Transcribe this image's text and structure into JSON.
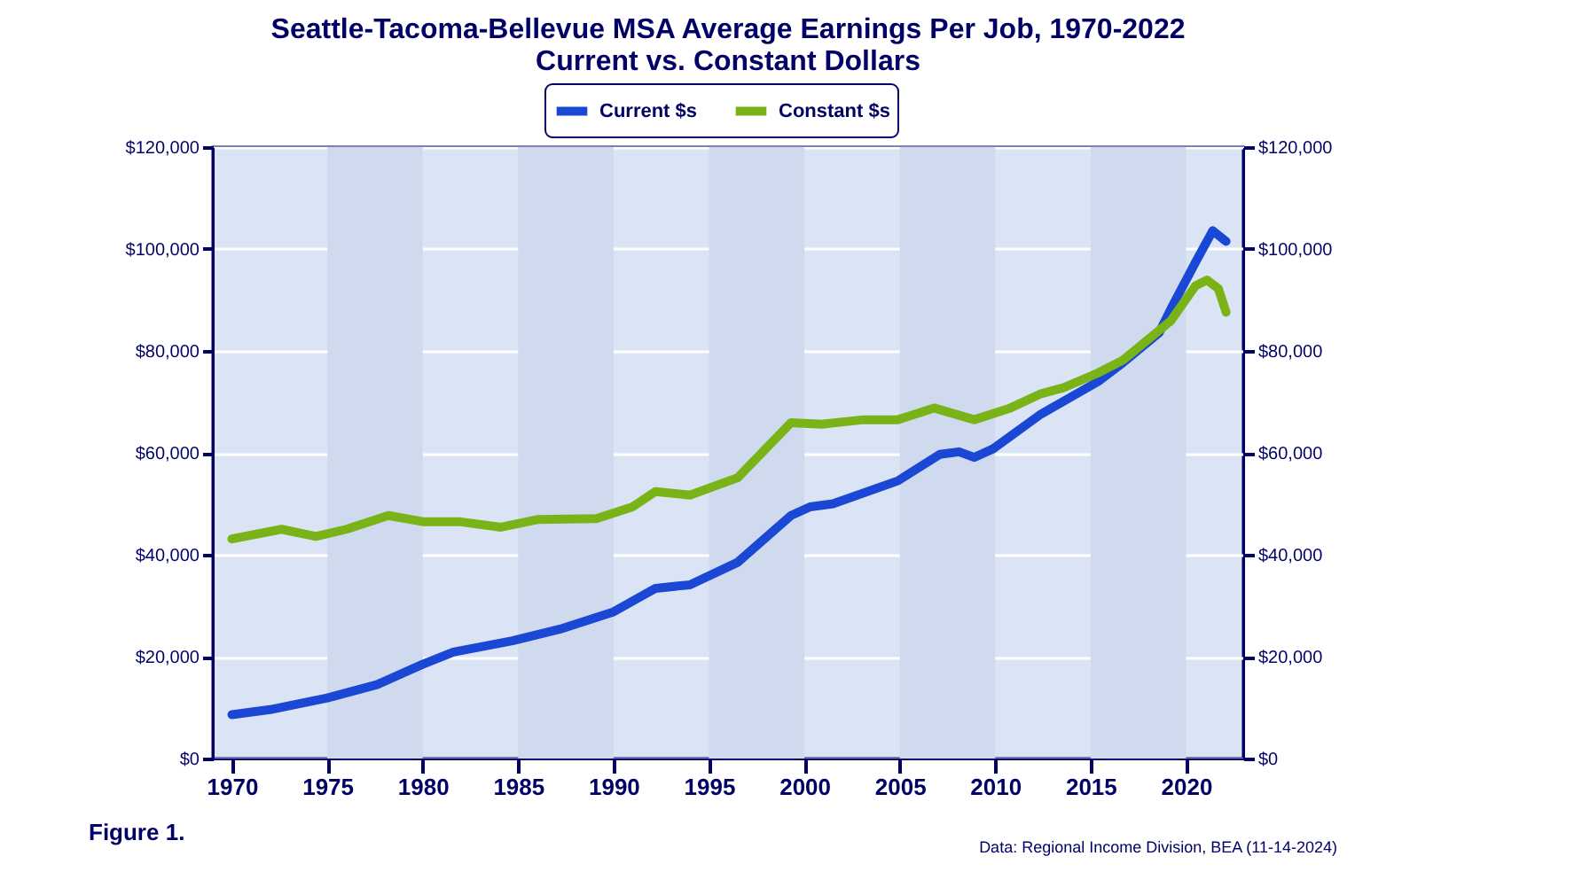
{
  "chart_data": {
    "type": "line",
    "title": "Seattle-Tacoma-Bellevue MSA Average Earnings Per Job, 1970-2022",
    "subtitle": "Current vs. Constant Dollars",
    "series": [
      {
        "name": "Current $s",
        "color": "#1a47d4",
        "x": [
          1970,
          1972,
          1975,
          1977.6,
          1980,
          1981.6,
          1984.7,
          1987.2,
          1990,
          1992.2,
          1994,
          1996.5,
          1999.3,
          2000.3,
          2001.5,
          2004.9,
          2007.1,
          2008.1,
          2008.9,
          2009.9,
          2012.4,
          2015.4,
          2016.7,
          2018.6,
          2019.2,
          2020.5,
          2021.4,
          2022.1
        ],
        "values": [
          8600,
          9600,
          11900,
          14500,
          18500,
          20900,
          23100,
          25400,
          28800,
          33400,
          34100,
          38500,
          47700,
          49400,
          50000,
          54500,
          59700,
          60200,
          59100,
          60800,
          67600,
          74000,
          77700,
          83600,
          88200,
          97400,
          103600,
          101500
        ]
      },
      {
        "name": "Constant $s",
        "color": "#7ab317",
        "x": [
          1970,
          1972.6,
          1974.4,
          1976,
          1978.2,
          1980,
          1981.9,
          1984.1,
          1986,
          1989.1,
          1991,
          1992.2,
          1994,
          1996.5,
          1999.3,
          2000.9,
          2003.1,
          2004.9,
          2006.8,
          2008.9,
          2010.8,
          2012.4,
          2013.6,
          2015.4,
          2016.7,
          2019.2,
          2020.5,
          2021.1,
          2021.7,
          2022.1
        ],
        "values": [
          43100,
          45000,
          43600,
          45000,
          47700,
          46500,
          46500,
          45400,
          46900,
          47100,
          49400,
          52400,
          51700,
          55100,
          65900,
          65600,
          66500,
          66500,
          68800,
          66500,
          68800,
          71600,
          72800,
          75700,
          78200,
          85900,
          92800,
          93900,
          92200,
          87600
        ]
      }
    ],
    "xlim": [
      1969,
      2023
    ],
    "xticks": [
      1970,
      1975,
      1980,
      1985,
      1990,
      1995,
      2000,
      2005,
      2010,
      2015,
      2020
    ],
    "ylim": [
      0,
      120000
    ],
    "yticks": [
      {
        "value": 0,
        "label": "$0"
      },
      {
        "value": 20000,
        "label": "$20,000"
      },
      {
        "value": 40000,
        "label": "$40,000"
      },
      {
        "value": 60000,
        "label": "$60,000"
      },
      {
        "value": 80000,
        "label": "$80,000"
      },
      {
        "value": 100000,
        "label": "$100,000"
      },
      {
        "value": 120000,
        "label": "$120,000"
      }
    ],
    "y2lim": [
      0,
      120000
    ],
    "y2ticks": [
      {
        "value": 0,
        "label": "$0"
      },
      {
        "value": 20000,
        "label": "$20,000"
      },
      {
        "value": 40000,
        "label": "$40,000"
      },
      {
        "value": 60000,
        "label": "$60,000"
      },
      {
        "value": 80000,
        "label": "$80,000"
      },
      {
        "value": 100000,
        "label": "$100,000"
      },
      {
        "value": 120000,
        "label": "$120,000"
      }
    ],
    "bands": [
      {
        "axis": "x",
        "from": 1975,
        "to": 1980,
        "color": "#cfdaee"
      },
      {
        "axis": "x",
        "from": 1985,
        "to": 1990,
        "color": "#cfdaee"
      },
      {
        "axis": "x",
        "from": 1995,
        "to": 2000,
        "color": "#cfdaee"
      },
      {
        "axis": "x",
        "from": 2005,
        "to": 2010,
        "color": "#cfdaee"
      },
      {
        "axis": "x",
        "from": 2015,
        "to": 2020,
        "color": "#cfdaee"
      }
    ],
    "grid": "y",
    "legend": "top",
    "marker": "none",
    "line_style": "solid",
    "annotations": [
      "Figure 1.",
      "Data: Regional Income Division, BEA (11-14-2024)"
    ]
  }
}
